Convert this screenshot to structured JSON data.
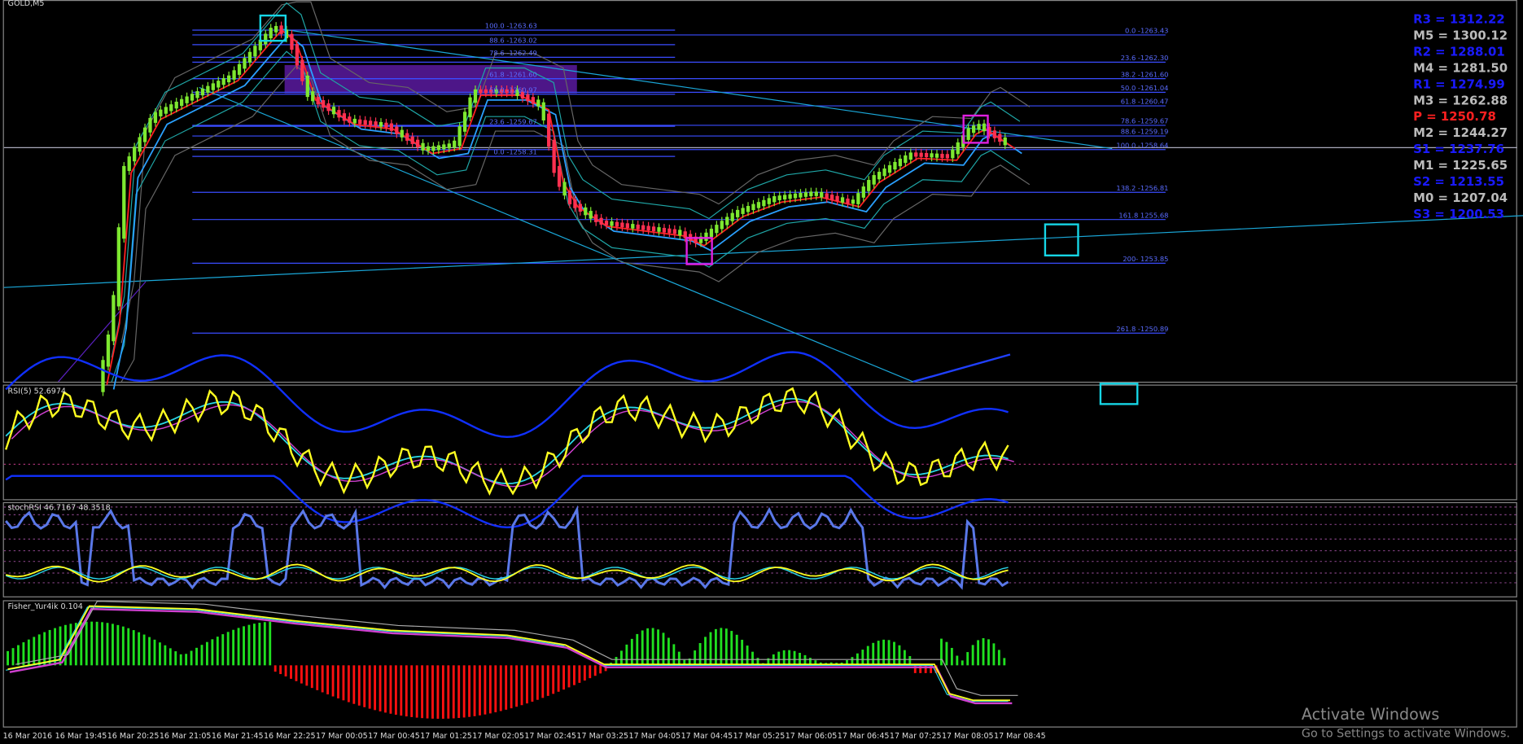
{
  "window": {
    "symbol": "GOLD,M5"
  },
  "fib_left": [
    "100.0 -1263.63",
    "88.6 -1263.02",
    "78.6 -1262.49",
    "61.8 -1261.60",
    "50.0 -1260.97",
    "23.6 -1259.67",
    "0.0 -1258.31"
  ],
  "fib_right": [
    "0.0 -1263.43",
    "23.6 -1262.30",
    "38.2 -1261.60",
    "50.0 -1261.04",
    "61.8 -1260.47",
    "78.6 -1259.67",
    "88.6 -1259.19",
    "100.0 -1258.64",
    "138.2 -1256.81",
    "161.8 1255.68",
    "200- 1253.85",
    "261.8 -1250.89"
  ],
  "pivots": [
    "R3 = 1312.22",
    "M5 = 1300.12",
    "R2 = 1288.01",
    "M4 = 1281.50",
    "R1 = 1274.99",
    "M3 = 1262.88",
    "P   = 1250.78",
    "M2 = 1244.27",
    "S1 = 1237.76",
    "M1 = 1225.65",
    "S2 = 1213.55",
    "M0 = 1207.04",
    "S3 = 1200.53"
  ],
  "indicators": [
    "RSI(5) 52.6974",
    "stochRSI 46.7167 48.3518",
    "Fisher_Yur4ik 0.104"
  ],
  "time_axis": [
    "16 Mar 2016",
    "16 Mar 19:45",
    "16 Mar 20:25",
    "16 Mar 21:05",
    "16 Mar 21:45",
    "16 Mar 22:25",
    "17 Mar 00:05",
    "17 Mar 00:45",
    "17 Mar 01:25",
    "17 Mar 02:05",
    "17 Mar 02:45",
    "17 Mar 03:25",
    "17 Mar 04:05",
    "17 Mar 04:45",
    "17 Mar 05:25",
    "17 Mar 06:05",
    "17 Mar 06:45",
    "17 Mar 07:25",
    "17 Mar 08:05",
    "17 Mar 08:45"
  ],
  "watermark": {
    "title": "Activate Windows",
    "subtitle": "Go to Settings to activate Windows."
  }
}
